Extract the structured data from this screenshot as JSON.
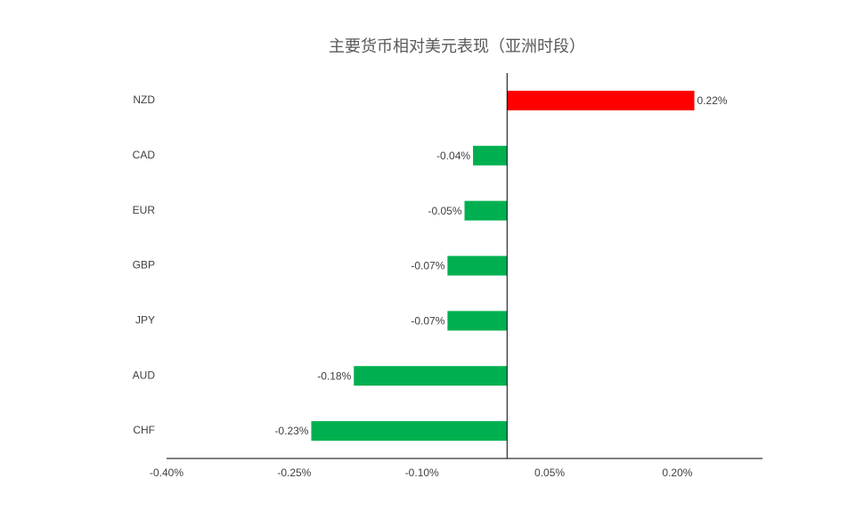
{
  "chart_data": {
    "type": "hbar",
    "title": "主要货币相对美元表现（亚洲时段）",
    "categories": [
      "NZD",
      "CAD",
      "EUR",
      "GBP",
      "JPY",
      "AUD",
      "CHF"
    ],
    "values": [
      0.22,
      -0.04,
      -0.05,
      -0.07,
      -0.07,
      -0.18,
      -0.23
    ],
    "value_labels": [
      "0.22%",
      "-0.04%",
      "-0.05%",
      "-0.07%",
      "-0.07%",
      "-0.18%",
      "-0.23%"
    ],
    "colors": [
      "#ff0000",
      "#00b050",
      "#00b050",
      "#00b050",
      "#00b050",
      "#00b050",
      "#00b050"
    ],
    "xlim": [
      -0.4,
      0.3
    ],
    "xticks": [
      {
        "value": -0.4,
        "label": "-0.40%"
      },
      {
        "value": -0.25,
        "label": "-0.25%"
      },
      {
        "value": -0.1,
        "label": "-0.10%"
      },
      {
        "value": 0.05,
        "label": "0.05%"
      },
      {
        "value": 0.2,
        "label": "0.20%"
      }
    ]
  }
}
